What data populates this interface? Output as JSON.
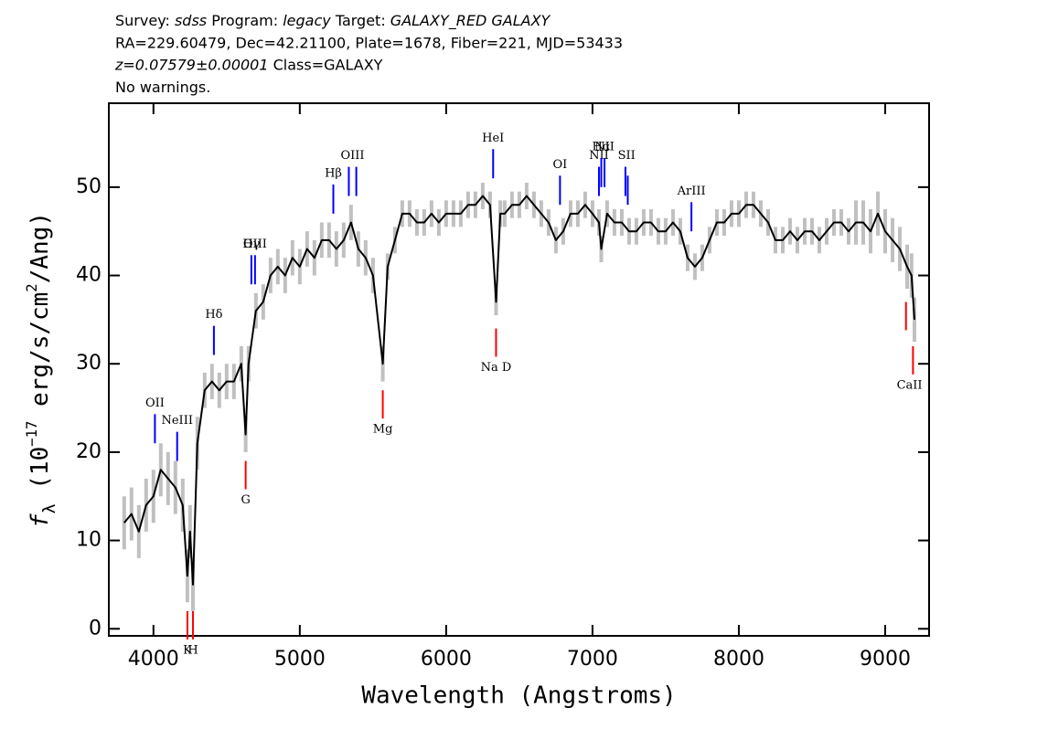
{
  "chart_data": {
    "type": "line",
    "title_lines": [
      [
        {
          "text": "Survey: "
        },
        {
          "text": "sdss",
          "italic": true
        },
        {
          "text": " Program: "
        },
        {
          "text": "legacy",
          "italic": true
        },
        {
          "text": " Target: "
        },
        {
          "text": "GALAXY_RED GALAXY",
          "italic": true
        }
      ],
      [
        {
          "text": "RA=229.60479, Dec=42.21100, Plate=1678, Fiber=221, MJD=53433"
        }
      ],
      [
        {
          "text": "z=0.07579±0.00001",
          "italic": true
        },
        {
          "text": " Class=GALAXY"
        }
      ],
      [
        {
          "text": "No warnings."
        }
      ]
    ],
    "x_label": "Wavelength (Angstroms)",
    "y_label": [
      {
        "text": "f",
        "italic": true
      },
      {
        "text": "λ",
        "sub": true
      },
      {
        "text": " (10"
      },
      {
        "text": "−17",
        "sup": true
      },
      {
        "text": " erg/s/cm"
      },
      {
        "text": "2",
        "sup": true
      },
      {
        "text": "/Ang)"
      }
    ],
    "xlim": [
      3695,
      9300
    ],
    "ylim": [
      -0.8,
      59.5
    ],
    "xticks": [
      4000,
      5000,
      6000,
      7000,
      8000,
      9000
    ],
    "yticks": [
      0,
      10,
      20,
      30,
      40,
      50
    ],
    "color": "#000000",
    "error_color": "#c0c0c0",
    "x": [
      3800,
      3850,
      3900,
      3950,
      4000,
      4050,
      4100,
      4150,
      4200,
      4232,
      4250,
      4270,
      4300,
      4350,
      4400,
      4450,
      4500,
      4550,
      4600,
      4630,
      4650,
      4700,
      4750,
      4800,
      4850,
      4900,
      4950,
      5000,
      5050,
      5100,
      5150,
      5200,
      5250,
      5300,
      5350,
      5400,
      5450,
      5500,
      5567,
      5600,
      5650,
      5700,
      5750,
      5800,
      5850,
      5900,
      5950,
      6000,
      6050,
      6100,
      6150,
      6200,
      6250,
      6300,
      6341,
      6370,
      6400,
      6450,
      6500,
      6550,
      6600,
      6650,
      6700,
      6750,
      6800,
      6850,
      6900,
      6950,
      7000,
      7044,
      7060,
      7100,
      7150,
      7200,
      7250,
      7300,
      7350,
      7400,
      7450,
      7500,
      7550,
      7600,
      7650,
      7700,
      7750,
      7800,
      7850,
      7900,
      7950,
      8000,
      8050,
      8100,
      8150,
      8200,
      8250,
      8300,
      8350,
      8400,
      8450,
      8500,
      8550,
      8600,
      8650,
      8700,
      8750,
      8800,
      8850,
      8900,
      8950,
      9000,
      9050,
      9100,
      9150,
      9180,
      9200
    ],
    "values": [
      12,
      13,
      11,
      14,
      15,
      18,
      17,
      16,
      14,
      6,
      11,
      5,
      21,
      27,
      28,
      27,
      28,
      28,
      30,
      22,
      30,
      36,
      37,
      40,
      41,
      40,
      42,
      41,
      43,
      42,
      44,
      44,
      43,
      44,
      46,
      43,
      42,
      40,
      30,
      41,
      44,
      47,
      47,
      46,
      46,
      47,
      46,
      47,
      47,
      47,
      48,
      48,
      49,
      48,
      37,
      47,
      47,
      48,
      48,
      49,
      48,
      47,
      46,
      44,
      45,
      47,
      47,
      48,
      47,
      46,
      43,
      47,
      46,
      46,
      45,
      45,
      46,
      46,
      45,
      45,
      46,
      45,
      42,
      41,
      42,
      44,
      46,
      46,
      47,
      47,
      48,
      48,
      47,
      46,
      44,
      44,
      45,
      44,
      45,
      45,
      44,
      45,
      46,
      46,
      45,
      46,
      46,
      45,
      47,
      45,
      44,
      43,
      41,
      40,
      35
    ],
    "error": [
      3,
      3,
      3,
      3,
      3,
      3,
      3,
      3,
      3,
      3,
      3,
      3,
      3,
      2,
      2,
      2,
      2,
      2,
      2,
      2,
      2,
      2,
      2,
      2,
      2,
      2,
      2,
      2,
      2,
      2,
      2,
      2,
      2,
      2,
      2,
      2,
      2,
      2,
      2,
      1.5,
      1.5,
      1.5,
      1.5,
      1.5,
      1.5,
      1.5,
      1.5,
      1.5,
      1.5,
      1.5,
      1.5,
      1.5,
      1.5,
      1.5,
      1.5,
      1.5,
      1.5,
      1.5,
      1.5,
      1.5,
      1.5,
      1.5,
      1.5,
      1.5,
      1.5,
      1.5,
      1.5,
      1.5,
      1.5,
      1.5,
      1.5,
      1.5,
      1.5,
      1.5,
      1.5,
      1.5,
      1.5,
      1.5,
      1.5,
      1.5,
      1.5,
      1.5,
      1.5,
      1.5,
      1.5,
      1.5,
      1.5,
      1.5,
      1.5,
      1.5,
      1.5,
      1.5,
      1.5,
      1.5,
      1.5,
      1.5,
      1.5,
      1.5,
      1.5,
      1.5,
      1.5,
      1.5,
      1.5,
      1.5,
      1.5,
      2.5,
      2.5,
      2.5,
      2.5,
      2.5,
      2.5,
      2.5,
      2.5,
      2.5,
      2.5
    ],
    "emission_color": "#0000ff",
    "absorption_color": "#ff0000",
    "emission_lines": [
      {
        "label": "OII",
        "wavelengths": [
          4010
        ]
      },
      {
        "label": "NeIII",
        "wavelengths": [
          4162
        ]
      },
      {
        "label": "Hδ",
        "wavelengths": [
          4413
        ]
      },
      {
        "label": "Hγ",
        "wavelengths": [
          4669
        ]
      },
      {
        "label": "OIII",
        "wavelengths": [
          4694
        ]
      },
      {
        "label": "Hβ",
        "wavelengths": [
          5229
        ]
      },
      {
        "label": "OIII",
        "wavelengths": [
          5335,
          5386
        ]
      },
      {
        "label": "HeI",
        "wavelengths": [
          6321
        ]
      },
      {
        "label": "OI",
        "wavelengths": [
          6778
        ]
      },
      {
        "label": "NII",
        "wavelengths": [
          7044
        ]
      },
      {
        "label": "Hα",
        "wavelengths": [
          7060
        ]
      },
      {
        "label": "NII",
        "wavelengths": [
          7082
        ]
      },
      {
        "label": "SII",
        "wavelengths": [
          7225,
          7241
        ]
      },
      {
        "label": "ArIII",
        "wavelengths": [
          7676
        ]
      }
    ],
    "absorption_lines": [
      {
        "label": "K",
        "wavelengths": [
          4232
        ]
      },
      {
        "label": "H",
        "wavelengths": [
          4270
        ]
      },
      {
        "label": "G",
        "wavelengths": [
          4630
        ]
      },
      {
        "label": "Mg",
        "wavelengths": [
          5567
        ]
      },
      {
        "label": "Na D",
        "wavelengths": [
          6341
        ]
      },
      {
        "label": "CaII",
        "wavelengths": [
          9142,
          9190
        ]
      }
    ]
  }
}
